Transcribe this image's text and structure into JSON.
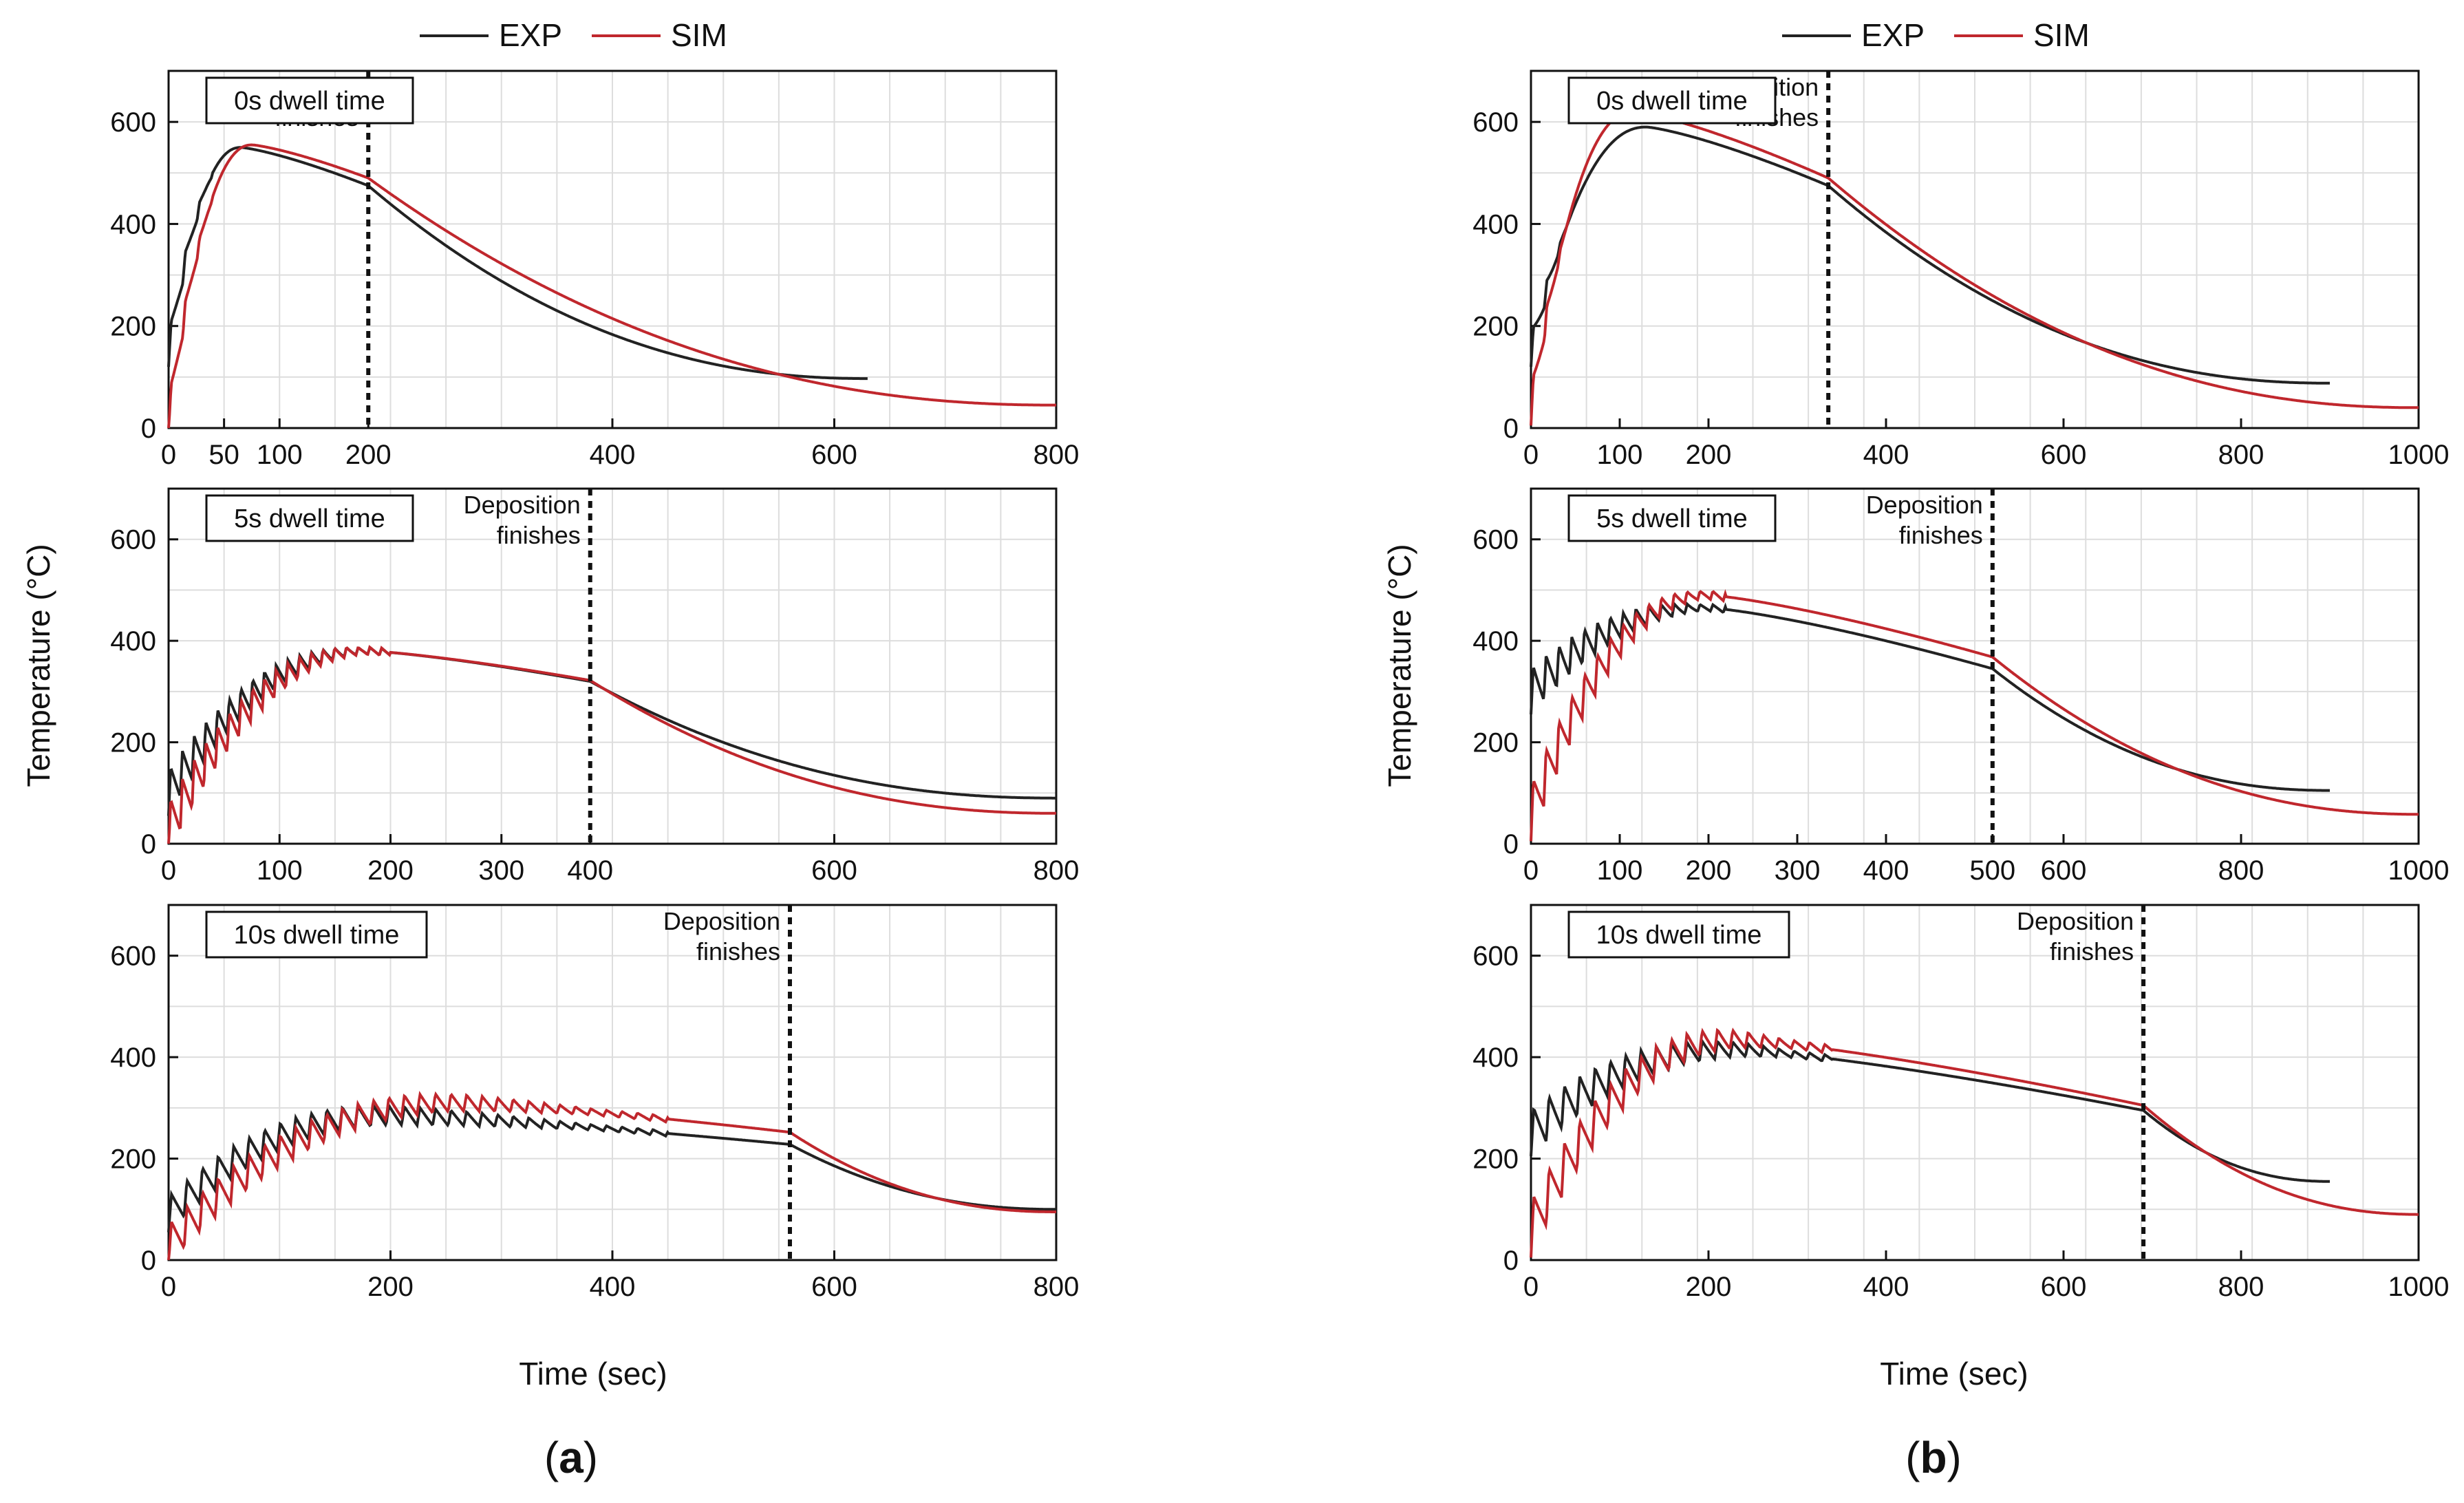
{
  "figure": {
    "panels": [
      {
        "id": "a",
        "caption": "a",
        "legend": [
          "EXP",
          "SIM"
        ],
        "ylabel": "Temperature (°C)",
        "xlabel": "Time (sec)"
      },
      {
        "id": "b",
        "caption": "b",
        "legend": [
          "EXP",
          "SIM"
        ],
        "ylabel": "Temperature (°C)",
        "xlabel": "Time (sec)"
      }
    ]
  },
  "colors": {
    "exp": "#222222",
    "sim": "#c0272d"
  },
  "chart_data": [
    {
      "type": "line",
      "panel": "a",
      "row": 0,
      "label": "0s dwell time",
      "annotation": "Deposition\nfinishes",
      "ylim": [
        0,
        700
      ],
      "yticks": [
        0,
        200,
        400,
        600
      ],
      "dep_end": 180,
      "seg1_xlim": [
        0,
        180
      ],
      "xticks": [
        {
          "v": 0,
          "l": "0"
        },
        {
          "v": 50,
          "l": "50"
        },
        {
          "v": 100,
          "l": "100"
        },
        {
          "v": 180,
          "l": "200"
        },
        {
          "v": 400,
          "l": "400"
        },
        {
          "v": 600,
          "l": "600"
        },
        {
          "v": 800,
          "l": "800"
        }
      ],
      "seg2_range": [
        180,
        800
      ],
      "exp_shape": {
        "n": 14,
        "start": 150,
        "rise": 70,
        "peak": 550,
        "peak_t": 65,
        "end_dep": 475,
        "end_t": 630,
        "end_val": 97,
        "amp": 60,
        "osc_until": 40
      },
      "sim_shape": {
        "n": 14,
        "start": 20,
        "rise": 70,
        "peak": 555,
        "peak_t": 75,
        "end_dep": 490,
        "end_t": 800,
        "end_val": 45,
        "amp": 65,
        "osc_until": 40
      }
    },
    {
      "type": "line",
      "panel": "a",
      "row": 1,
      "label": "5s dwell time",
      "annotation": "Deposition\nfinishes",
      "ylim": [
        0,
        700
      ],
      "yticks": [
        0,
        200,
        400,
        600
      ],
      "dep_end": 380,
      "seg1_xlim": [
        0,
        380
      ],
      "xticks": [
        {
          "v": 0,
          "l": "0"
        },
        {
          "v": 100,
          "l": "100"
        },
        {
          "v": 200,
          "l": "200"
        },
        {
          "v": 300,
          "l": "300"
        },
        {
          "v": 380,
          "l": "400"
        },
        {
          "v": 600,
          "l": "600"
        },
        {
          "v": 800,
          "l": "800"
        }
      ],
      "seg2_range": [
        380,
        800
      ],
      "exp_shape": {
        "n": 36,
        "start": 100,
        "rise": 80,
        "peak": 380,
        "peak_t": 180,
        "end_dep": 320,
        "end_t": 800,
        "end_val": 90,
        "amp": 90,
        "osc_until": 200
      },
      "sim_shape": {
        "n": 36,
        "start": 30,
        "rise": 80,
        "peak": 380,
        "peak_t": 180,
        "end_dep": 322,
        "end_t": 800,
        "end_val": 60,
        "amp": 100,
        "osc_until": 200
      }
    },
    {
      "type": "line",
      "panel": "a",
      "row": 2,
      "label": "10s dwell time",
      "annotation": "Deposition\nfinishes",
      "ylim": [
        0,
        700
      ],
      "yticks": [
        0,
        200,
        400,
        600
      ],
      "dep_end": 560,
      "seg1_xlim": [
        0,
        800
      ],
      "xticks": [
        {
          "v": 0,
          "l": "0"
        },
        {
          "v": 200,
          "l": "200"
        },
        {
          "v": 400,
          "l": "400"
        },
        {
          "v": 600,
          "l": "600"
        },
        {
          "v": 800,
          "l": "800"
        }
      ],
      "seg2_range": null,
      "exp_shape": {
        "n": 40,
        "start": 90,
        "rise": 80,
        "peak": 285,
        "peak_t": 200,
        "end_dep": 228,
        "end_t": 800,
        "end_val": 100,
        "amp": 70,
        "osc_until": 450
      },
      "sim_shape": {
        "n": 40,
        "start": 30,
        "rise": 80,
        "peak": 310,
        "peak_t": 260,
        "end_dep": 252,
        "end_t": 800,
        "end_val": 95,
        "amp": 80,
        "osc_until": 450
      }
    },
    {
      "type": "line",
      "panel": "b",
      "row": 0,
      "label": "0s dwell time",
      "annotation": "Deposition\nfinishes",
      "ylim": [
        0,
        700
      ],
      "yticks": [
        0,
        200,
        400,
        600
      ],
      "dep_end": 335,
      "seg1_xlim": [
        0,
        335
      ],
      "xticks": [
        {
          "v": 0,
          "l": "0"
        },
        {
          "v": 100,
          "l": "100"
        },
        {
          "v": 200,
          "l": "200"
        },
        {
          "v": 400,
          "l": "400"
        },
        {
          "v": 600,
          "l": "600"
        },
        {
          "v": 800,
          "l": "800"
        },
        {
          "v": 1000,
          "l": "1000"
        }
      ],
      "seg2_range": [
        335,
        1000
      ],
      "exp_shape": {
        "n": 22,
        "start": 150,
        "rise": 60,
        "peak": 590,
        "peak_t": 130,
        "end_dep": 475,
        "end_t": 900,
        "end_val": 88,
        "amp": 60,
        "osc_until": 40
      },
      "sim_shape": {
        "n": 22,
        "start": 40,
        "rise": 60,
        "peak": 620,
        "peak_t": 115,
        "end_dep": 490,
        "end_t": 1000,
        "end_val": 40,
        "amp": 70,
        "osc_until": 40
      }
    },
    {
      "type": "line",
      "panel": "b",
      "row": 1,
      "label": "5s dwell time",
      "annotation": "Deposition\nfinishes",
      "ylim": [
        0,
        700
      ],
      "yticks": [
        0,
        200,
        400,
        600
      ],
      "dep_end": 520,
      "seg1_xlim": [
        0,
        520
      ],
      "xticks": [
        {
          "v": 0,
          "l": "0"
        },
        {
          "v": 100,
          "l": "100"
        },
        {
          "v": 200,
          "l": "200"
        },
        {
          "v": 300,
          "l": "300"
        },
        {
          "v": 400,
          "l": "400"
        },
        {
          "v": 520,
          "l": "500"
        },
        {
          "v": 600,
          "l": "600"
        },
        {
          "v": 800,
          "l": "800"
        },
        {
          "v": 1000,
          "l": "1000"
        }
      ],
      "seg2_range": null,
      "exp_shape": {
        "n": 36,
        "start": 300,
        "rise": 80,
        "peak": 465,
        "peak_t": 200,
        "end_dep": 345,
        "end_t": 900,
        "end_val": 105,
        "amp": 90,
        "osc_until": 220
      },
      "sim_shape": {
        "n": 36,
        "start": 60,
        "rise": 80,
        "peak": 490,
        "peak_t": 200,
        "end_dep": 368,
        "end_t": 1000,
        "end_val": 58,
        "amp": 110,
        "osc_until": 220
      }
    },
    {
      "type": "line",
      "panel": "b",
      "row": 2,
      "label": "10s dwell time",
      "annotation": "Deposition\nfinishes",
      "ylim": [
        0,
        700
      ],
      "yticks": [
        0,
        200,
        400,
        600
      ],
      "dep_end": 690,
      "seg1_xlim": [
        0,
        1000
      ],
      "xticks": [
        {
          "v": 0,
          "l": "0"
        },
        {
          "v": 200,
          "l": "200"
        },
        {
          "v": 400,
          "l": "400"
        },
        {
          "v": 600,
          "l": "600"
        },
        {
          "v": 800,
          "l": "800"
        },
        {
          "v": 1000,
          "l": "1000"
        }
      ],
      "seg2_range": null,
      "exp_shape": {
        "n": 40,
        "start": 250,
        "rise": 70,
        "peak": 415,
        "peak_t": 230,
        "end_dep": 295,
        "end_t": 900,
        "end_val": 155,
        "amp": 90,
        "osc_until": 340
      },
      "sim_shape": {
        "n": 40,
        "start": 60,
        "rise": 70,
        "peak": 435,
        "peak_t": 230,
        "end_dep": 305,
        "end_t": 1000,
        "end_val": 90,
        "amp": 110,
        "osc_until": 340
      }
    }
  ]
}
